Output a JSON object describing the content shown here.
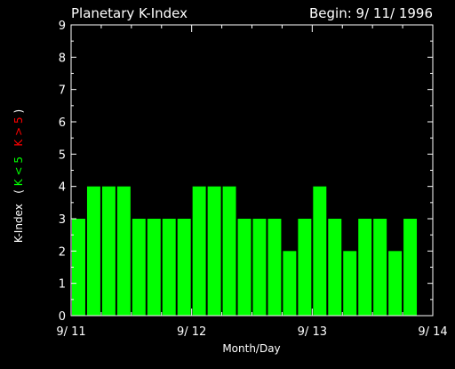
{
  "chart_data": {
    "type": "bar",
    "title": "Planetary K-Index",
    "subtitle": "Begin: 9/ 11/ 1996",
    "xlabel": "Month/Day",
    "ylabel_parts": {
      "main": "K-Index",
      "open": "(",
      "green_label": "K < 5",
      "red_label": "K > 5",
      "close": ")"
    },
    "ylim": [
      0,
      9
    ],
    "yticks": [
      0,
      1,
      2,
      3,
      4,
      5,
      6,
      7,
      8,
      9
    ],
    "xlim": [
      0,
      24
    ],
    "xticks": [
      {
        "pos": 0,
        "label": "9/ 11"
      },
      {
        "pos": 8,
        "label": "9/ 12"
      },
      {
        "pos": 16,
        "label": "9/ 13"
      },
      {
        "pos": 24,
        "label": "9/ 14"
      }
    ],
    "values": [
      3,
      4,
      4,
      4,
      3,
      3,
      3,
      3,
      4,
      4,
      4,
      3,
      3,
      3,
      2,
      3,
      4,
      3,
      2,
      3,
      3,
      2,
      3
    ],
    "threshold": 5,
    "colors": {
      "background": "#000000",
      "axis": "#ffffff",
      "bar_low": "#00ff00",
      "bar_high": "#ff0000",
      "label_green": "#00ff00",
      "label_red": "#ff0000"
    }
  }
}
